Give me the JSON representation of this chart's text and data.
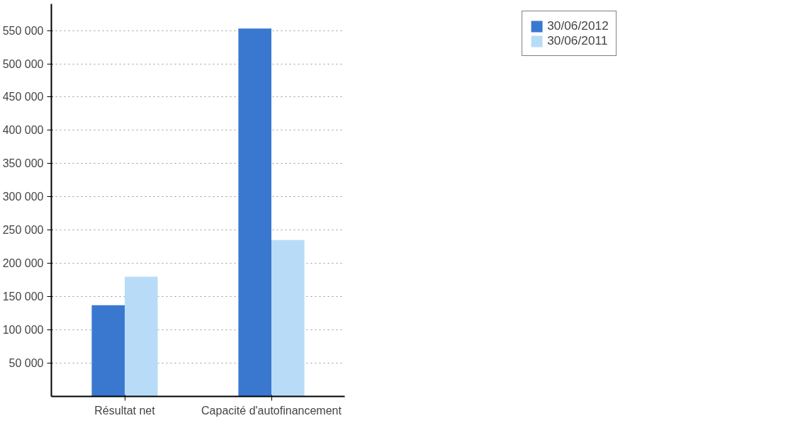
{
  "chart_data": {
    "type": "bar",
    "categories": [
      "Résultat net",
      "Capacité d'autofinancement"
    ],
    "series": [
      {
        "name": "30/06/2012",
        "color": "#3a78d0",
        "values": [
          137000,
          553000
        ]
      },
      {
        "name": "30/06/2011",
        "color": "#b8dcf8",
        "values": [
          180000,
          235000
        ]
      }
    ],
    "ylim": [
      0,
      590000
    ],
    "yticks": [
      {
        "value": 50000,
        "label": "50 000"
      },
      {
        "value": 100000,
        "label": "100 000"
      },
      {
        "value": 150000,
        "label": "150 000"
      },
      {
        "value": 200000,
        "label": "200 000"
      },
      {
        "value": 250000,
        "label": "250 000"
      },
      {
        "value": 300000,
        "label": "300 000"
      },
      {
        "value": 350000,
        "label": "350 000"
      },
      {
        "value": 400000,
        "label": "400 000"
      },
      {
        "value": 450000,
        "label": "450 000"
      },
      {
        "value": 500000,
        "label": "500 000"
      },
      {
        "value": 550000,
        "label": "550 000"
      }
    ],
    "grid": "y",
    "legend": "top right"
  }
}
